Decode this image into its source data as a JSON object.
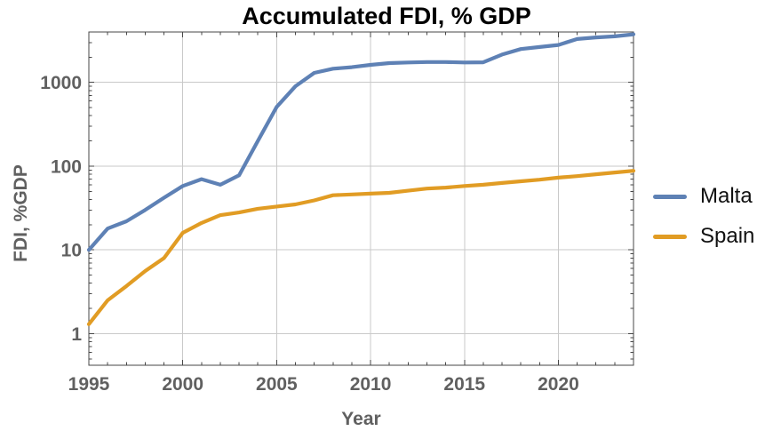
{
  "chart_data": {
    "type": "line",
    "title": "Accumulated FDI, % GDP",
    "xlabel": "Year",
    "ylabel": "FDI, %GDP",
    "x_range": [
      1995,
      2024
    ],
    "y_range": [
      0.42,
      4000
    ],
    "y_scale": "log",
    "grid": true,
    "legend_position": "right-outside",
    "xticks": [
      1995,
      2000,
      2005,
      2010,
      2015,
      2020
    ],
    "xgrid": [
      2000,
      2005,
      2010,
      2015,
      2020
    ],
    "yticks": [
      1,
      10,
      100,
      1000
    ],
    "ytick_labels": [
      "1",
      "10",
      "100",
      "1000"
    ],
    "x": [
      1995,
      1996,
      1997,
      1998,
      1999,
      2000,
      2001,
      2002,
      2003,
      2004,
      2005,
      2006,
      2007,
      2008,
      2009,
      2010,
      2011,
      2012,
      2013,
      2014,
      2015,
      2016,
      2017,
      2018,
      2019,
      2020,
      2021,
      2022,
      2023,
      2024
    ],
    "series": [
      {
        "name": "Malta",
        "color": "#5E81B5",
        "values": [
          10,
          18,
          22,
          30,
          42,
          58,
          70,
          60,
          78,
          200,
          510,
          900,
          1300,
          1460,
          1520,
          1620,
          1700,
          1730,
          1750,
          1750,
          1730,
          1740,
          2150,
          2500,
          2650,
          2800,
          3300,
          3450,
          3550,
          3750
        ]
      },
      {
        "name": "Spain",
        "color": "#E19C24",
        "values": [
          1.3,
          2.5,
          3.7,
          5.6,
          8,
          16,
          21,
          26,
          28,
          31,
          33,
          35,
          39,
          45,
          46,
          47,
          48,
          51,
          54,
          55.5,
          58,
          60,
          63,
          66,
          69,
          73,
          76,
          80,
          84,
          88
        ]
      }
    ],
    "colors": {
      "grid": "#c9c9c9",
      "frame": "#474747",
      "tick_label": "#606060",
      "title": "#000000",
      "legend_text": "#111111"
    }
  }
}
